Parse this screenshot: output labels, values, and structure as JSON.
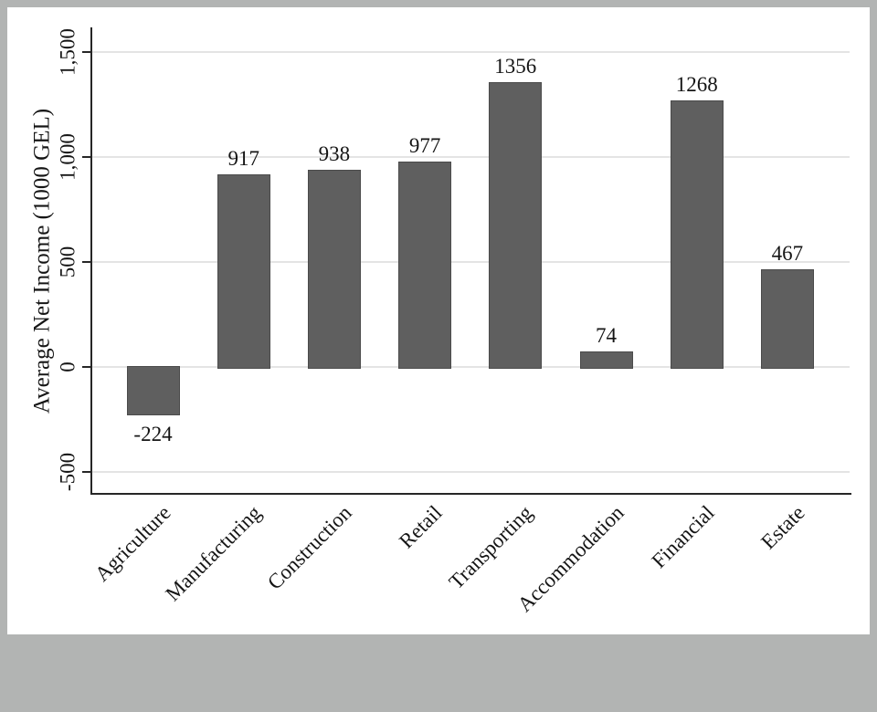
{
  "chart_data": {
    "type": "bar",
    "title": "",
    "ylabel": "Average Net Income (1000 GEL)",
    "xlabel": "",
    "categories": [
      "Agriculture",
      "Manufacturing",
      "Construction",
      "Retail",
      "Transporting",
      "Accommodation",
      "Financial",
      "Estate"
    ],
    "values": [
      -224,
      917,
      938,
      977,
      1356,
      74,
      1268,
      467
    ],
    "value_labels": [
      "-224",
      "917",
      "938",
      "977",
      "1356",
      "74",
      "1268",
      "467"
    ],
    "yticks": [
      {
        "value": -500,
        "label": "-500"
      },
      {
        "value": 0,
        "label": "0"
      },
      {
        "value": 500,
        "label": "500"
      },
      {
        "value": 1000,
        "label": "1,000"
      },
      {
        "value": 1500,
        "label": "1,500"
      }
    ],
    "ylim": [
      -600,
      1620
    ],
    "grid": "horizontal",
    "legend": "none",
    "colors": {
      "bar_fill": "#5f5f5f",
      "bar_border": "#4b4b4b",
      "gridline": "#e4e4e4",
      "axis": "#262626",
      "text": "#151515",
      "plot_background": "#ffffff",
      "frame_background": "#b2b4b3"
    }
  }
}
